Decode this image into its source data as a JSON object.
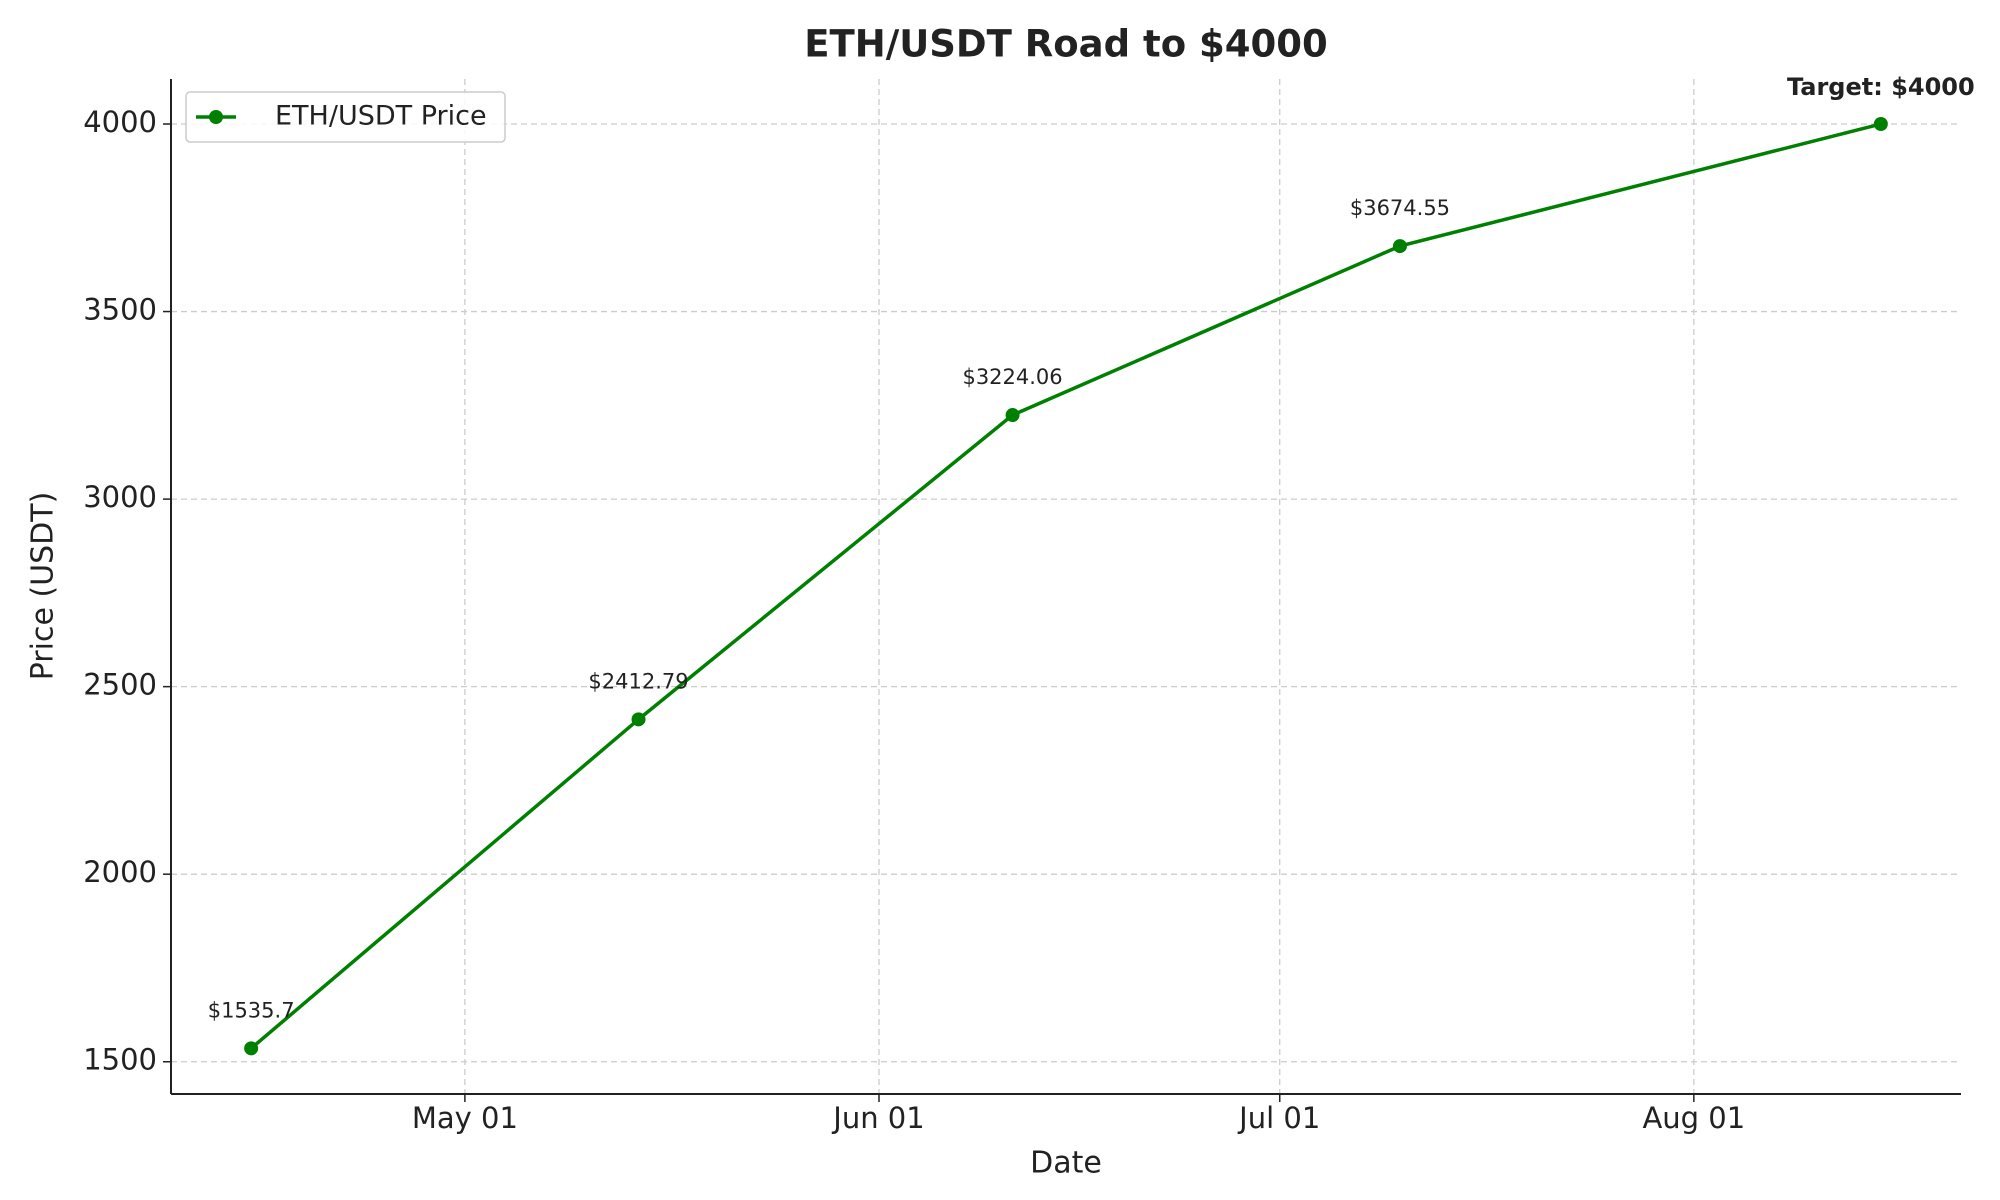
{
  "chart_data": {
    "type": "line",
    "title": "ETH/USDT Road to $4000",
    "x_label": "Date",
    "y_label": "Price (USDT)",
    "x": [
      "04-15",
      "05-14",
      "06-11",
      "07-10",
      "08-15"
    ],
    "series": [
      {
        "name": "ETH/USDT Price",
        "color": "#008000",
        "values": [
          1535.7,
          2412.79,
          3224.06,
          3674.55,
          4000
        ],
        "value_labels": [
          "$1535.7",
          "$2412.79",
          "$3224.06",
          "$3674.55",
          null
        ]
      }
    ],
    "annotation": {
      "text": "Target: $4000",
      "color": "#0000cc"
    },
    "xlim": [
      "04-09",
      "08-21"
    ],
    "xticks": [
      {
        "value": "05-01",
        "label": "May 01"
      },
      {
        "value": "06-01",
        "label": "Jun 01"
      },
      {
        "value": "07-01",
        "label": "Jul 01"
      },
      {
        "value": "08-01",
        "label": "Aug 01"
      }
    ],
    "ylim": [
      1414,
      4120
    ],
    "yticks": [
      1500,
      2000,
      2500,
      3000,
      3500,
      4000
    ],
    "grid": true,
    "legend": "upper left"
  }
}
